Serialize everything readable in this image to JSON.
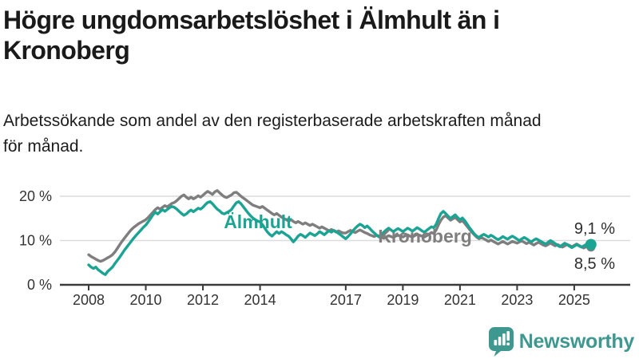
{
  "header": {
    "title": "Högre ungdomsarbetslöshet i Älmhult än i\nKronoberg",
    "subtitle": "Arbetssökande som andel av den registerbaserade arbetskraften månad\nför månad."
  },
  "chart_data": {
    "type": "line",
    "title": "Högre ungdomsarbetslöshet i Älmhult än i Kronoberg",
    "subtitle": "Arbetssökande som andel av den registerbaserade arbetskraften månad för månad.",
    "unit": "%",
    "x_start_year": 2008,
    "x_step_months": 1,
    "x_end": "2025-08",
    "ylim": [
      0,
      22
    ],
    "grid": "horizontal",
    "legend_position": "inline-labels",
    "yticks": [
      {
        "value": 0,
        "label": "0 %"
      },
      {
        "value": 10,
        "label": "10 %"
      },
      {
        "value": 20,
        "label": "20 %"
      }
    ],
    "xticks": [
      {
        "value": 2008,
        "label": "2008"
      },
      {
        "value": 2010,
        "label": "2010"
      },
      {
        "value": 2012,
        "label": "2012"
      },
      {
        "value": 2014,
        "label": "2014"
      },
      {
        "value": 2017,
        "label": "2017"
      },
      {
        "value": 2019,
        "label": "2019"
      },
      {
        "value": 2021,
        "label": "2021"
      },
      {
        "value": 2023,
        "label": "2023"
      },
      {
        "value": 2025,
        "label": "2025"
      }
    ],
    "series": [
      {
        "name": "Älmhult",
        "color": "#1ba393",
        "end_label": "9,1 %",
        "end_value": 9.1,
        "values": [
          4.5,
          4.0,
          3.7,
          4.0,
          3.4,
          3.0,
          2.6,
          2.3,
          3.0,
          3.5,
          4.0,
          4.8,
          5.5,
          6.2,
          7.0,
          7.8,
          8.5,
          9.2,
          9.9,
          10.6,
          11.2,
          11.8,
          12.4,
          13.0,
          13.5,
          14.2,
          15.0,
          15.8,
          16.4,
          16.0,
          16.5,
          17.0,
          16.6,
          17.0,
          17.4,
          17.7,
          17.5,
          17.1,
          16.6,
          16.1,
          15.7,
          16.0,
          16.5,
          16.9,
          16.5,
          16.9,
          17.3,
          17.1,
          17.5,
          18.1,
          18.6,
          18.8,
          18.3,
          17.7,
          17.1,
          16.7,
          16.2,
          16.0,
          16.3,
          16.6,
          17.0,
          17.8,
          18.5,
          18.8,
          18.3,
          17.6,
          16.9,
          16.2,
          15.6,
          15.1,
          14.7,
          14.4,
          14.2,
          13.6,
          12.8,
          12.0,
          11.4,
          11.0,
          11.5,
          12.0,
          11.6,
          12.0,
          11.7,
          11.3,
          11.0,
          10.4,
          9.7,
          10.3,
          11.0,
          11.4,
          11.1,
          10.7,
          11.2,
          11.7,
          11.4,
          11.1,
          11.5,
          12.0,
          11.7,
          11.3,
          11.8,
          12.2,
          11.9,
          12.3,
          12.0,
          11.6,
          11.2,
          10.8,
          10.4,
          10.9,
          11.5,
          12.2,
          12.8,
          13.3,
          13.7,
          13.4,
          12.9,
          13.3,
          12.8,
          12.2,
          11.7,
          11.2,
          10.8,
          11.3,
          11.9,
          12.4,
          12.8,
          12.4,
          12.0,
          12.4,
          12.7,
          12.4,
          12.0,
          12.4,
          12.8,
          12.5,
          12.1,
          12.5,
          12.9,
          12.6,
          12.2,
          11.9,
          12.3,
          12.7,
          13.1,
          12.9,
          13.7,
          15.0,
          16.1,
          16.6,
          16.1,
          15.5,
          15.0,
          15.4,
          15.8,
          15.2,
          14.7,
          15.1,
          14.5,
          13.7,
          12.9,
          12.2,
          11.5,
          11.0,
          10.7,
          11.1,
          11.4,
          11.1,
          10.8,
          11.2,
          10.9,
          10.5,
          10.2,
          10.5,
          10.9,
          10.6,
          10.3,
          10.7,
          11.0,
          10.7,
          10.3,
          10.0,
          10.4,
          10.7,
          10.4,
          10.0,
          9.7,
          10.1,
          10.4,
          10.1,
          9.8,
          9.5,
          9.2,
          9.6,
          10.0,
          9.7,
          9.3,
          8.9,
          8.6,
          9.0,
          9.4,
          9.1,
          8.7,
          8.4,
          8.7,
          9.1,
          8.8,
          8.5,
          8.8,
          9.1,
          8.9,
          9.1
        ]
      },
      {
        "name": "Kronoberg",
        "color": "#7e7e7e",
        "end_label": "8,5 %",
        "end_value": 8.5,
        "values": [
          6.8,
          6.4,
          6.1,
          5.8,
          5.5,
          5.3,
          5.5,
          5.8,
          6.1,
          6.4,
          6.8,
          7.4,
          8.2,
          9.0,
          9.8,
          10.5,
          11.2,
          11.9,
          12.5,
          13.0,
          13.4,
          13.8,
          14.1,
          14.4,
          14.7,
          15.2,
          15.8,
          16.4,
          17.0,
          17.4,
          17.1,
          17.5,
          17.9,
          17.6,
          18.0,
          18.4,
          18.6,
          19.0,
          19.5,
          20.0,
          20.3,
          19.8,
          19.4,
          19.8,
          19.4,
          19.7,
          20.1,
          19.8,
          20.2,
          20.7,
          21.1,
          20.8,
          20.4,
          21.0,
          21.3,
          20.8,
          20.3,
          19.9,
          19.7,
          20.0,
          20.3,
          20.8,
          20.9,
          20.5,
          20.0,
          19.6,
          19.2,
          18.8,
          18.4,
          18.0,
          17.8,
          17.6,
          17.4,
          17.7,
          17.3,
          16.9,
          16.5,
          16.1,
          15.8,
          16.1,
          15.7,
          15.3,
          15.0,
          14.7,
          14.4,
          14.7,
          14.3,
          14.0,
          14.3,
          14.0,
          13.7,
          14.0,
          13.7,
          13.4,
          13.7,
          13.4,
          13.1,
          12.8,
          13.1,
          12.8,
          12.5,
          12.2,
          12.5,
          12.2,
          11.9,
          12.2,
          11.9,
          11.7,
          11.7,
          12.0,
          12.3,
          12.0,
          11.8,
          12.1,
          12.4,
          12.1,
          11.8,
          11.6,
          11.3,
          11.1,
          10.9,
          11.2,
          11.0,
          10.7,
          10.5,
          10.8,
          11.1,
          10.9,
          10.7,
          11.0,
          11.2,
          11.0,
          10.8,
          11.1,
          11.3,
          11.0,
          10.8,
          11.1,
          11.4,
          11.2,
          11.0,
          10.8,
          11.1,
          11.4,
          11.8,
          11.6,
          12.4,
          13.6,
          14.6,
          15.3,
          15.6,
          15.1,
          14.6,
          14.9,
          15.2,
          14.7,
          14.2,
          14.5,
          13.9,
          13.2,
          12.5,
          11.9,
          11.3,
          10.8,
          10.4,
          10.7,
          10.4,
          10.1,
          9.8,
          10.1,
          9.8,
          9.5,
          9.2,
          9.5,
          9.8,
          9.5,
          9.2,
          9.5,
          9.8,
          9.6,
          9.4,
          9.7,
          9.9,
          9.6,
          9.3,
          9.6,
          9.3,
          9.0,
          9.3,
          9.6,
          9.3,
          9.0,
          8.8,
          9.1,
          9.4,
          9.1,
          8.8,
          9.1,
          8.8,
          8.5,
          8.8,
          9.1,
          8.9,
          8.6,
          8.9,
          9.2,
          8.9,
          8.6,
          8.3,
          8.6,
          8.4,
          8.5
        ]
      }
    ],
    "colors": {
      "grid": "#dcdcdc",
      "axis": "#3a3a3a",
      "tick_label": "#333333",
      "end_label": "#2e2e2e"
    }
  },
  "footer": {
    "brand": "Newsworthy",
    "brand_color": "#3e988f"
  }
}
